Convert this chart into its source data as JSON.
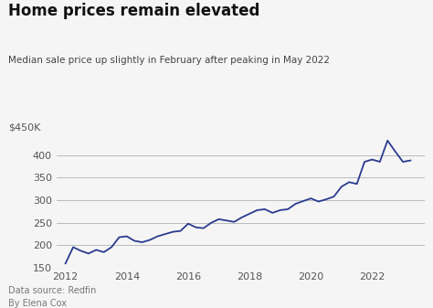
{
  "title": "Home prices remain elevated",
  "subtitle": "Median sale price up slightly in February after peaking in May 2022",
  "y_axis_label": "$450K",
  "footer_line1": "Data source: Redfin",
  "footer_line2": "By Elena Cox",
  "line_color": "#2b3a8f",
  "bg_color": "#f5f5f5",
  "grid_color": "#bbbbbb",
  "ylim": [
    150,
    450
  ],
  "yticks": [
    150,
    200,
    250,
    300,
    350,
    400
  ],
  "xticks": [
    2012,
    2014,
    2016,
    2018,
    2020,
    2022
  ],
  "x": [
    2012.0,
    2012.25,
    2012.5,
    2012.75,
    2013.0,
    2013.25,
    2013.5,
    2013.75,
    2014.0,
    2014.25,
    2014.5,
    2014.75,
    2015.0,
    2015.25,
    2015.5,
    2015.75,
    2016.0,
    2016.25,
    2016.5,
    2016.75,
    2017.0,
    2017.25,
    2017.5,
    2017.75,
    2018.0,
    2018.25,
    2018.5,
    2018.75,
    2019.0,
    2019.25,
    2019.5,
    2019.75,
    2020.0,
    2020.25,
    2020.5,
    2020.75,
    2021.0,
    2021.25,
    2021.5,
    2021.75,
    2022.0,
    2022.25,
    2022.5,
    2022.75,
    2023.0,
    2023.25
  ],
  "y": [
    160,
    196,
    188,
    182,
    190,
    185,
    196,
    218,
    220,
    210,
    207,
    212,
    220,
    225,
    230,
    232,
    248,
    240,
    238,
    250,
    258,
    255,
    252,
    262,
    270,
    278,
    280,
    272,
    278,
    280,
    292,
    298,
    304,
    297,
    302,
    308,
    330,
    340,
    336,
    385,
    390,
    385,
    432,
    408,
    385,
    388
  ]
}
